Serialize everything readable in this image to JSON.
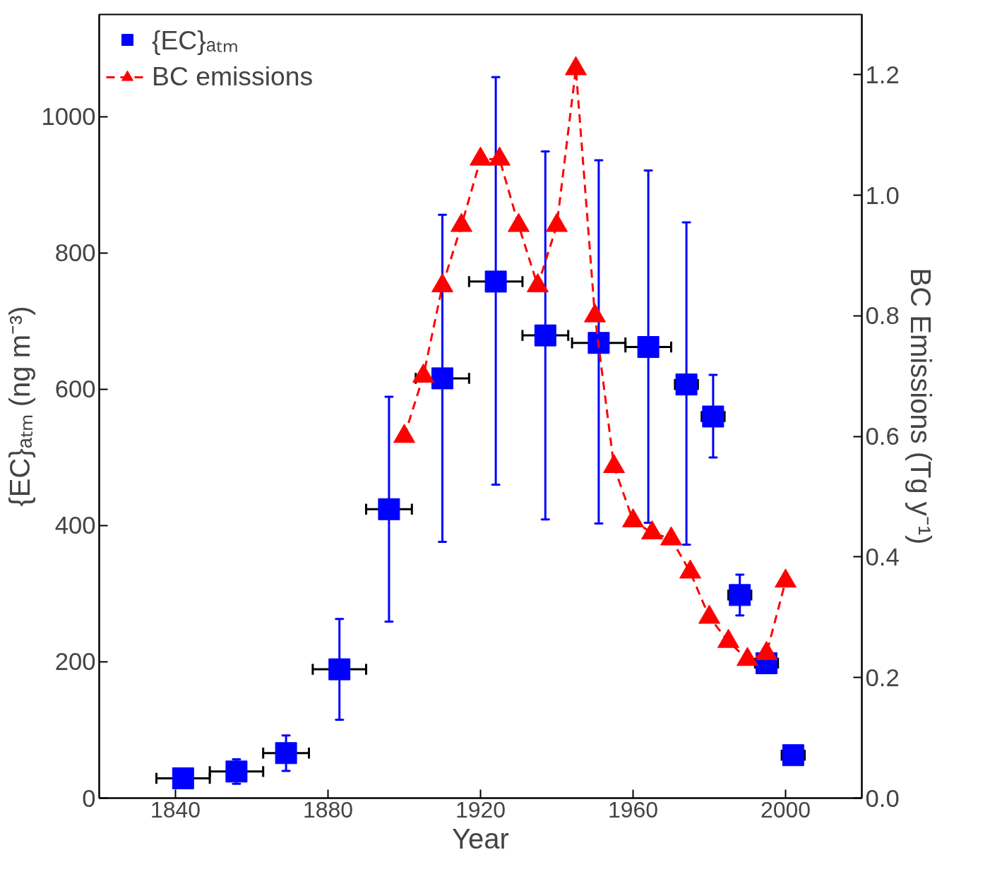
{
  "chart_data": {
    "type": "scatter",
    "xlabel": "Year",
    "ylabel": "{EC}ₐₜₘ (ng m⁻³)",
    "y2label": "BC Emissions (Tg y⁻¹)",
    "xlim": [
      1820,
      2020
    ],
    "xticks": [
      1840,
      1880,
      1920,
      1960,
      2000
    ],
    "ylim": [
      0,
      1150
    ],
    "yticks": [
      0,
      200,
      400,
      600,
      800,
      1000
    ],
    "y2lim": [
      0,
      1.3
    ],
    "y2ticks": [
      {
        "value": 0,
        "label": "0.0"
      },
      0.2,
      0.4,
      0.6,
      0.8,
      {
        "value": 1,
        "label": "1.0"
      },
      1.2
    ],
    "grid": false,
    "legend": "top left",
    "series": [
      {
        "name": "{EC}ₐₜₘ",
        "marker": "square",
        "color": "#0000ff",
        "x": [
          1842,
          1856,
          1869,
          1883,
          1896,
          1910,
          1924,
          1937,
          1951,
          1964,
          1974,
          1981,
          1988,
          1995,
          2002
        ],
        "values": [
          29,
          39,
          66,
          189,
          424,
          616,
          758,
          679,
          668,
          662,
          607,
          560,
          298,
          198,
          63
        ],
        "errors": [
          null,
          [
            21,
            57
          ],
          [
            40,
            92
          ],
          [
            115,
            263
          ],
          [
            259,
            589
          ],
          [
            376,
            856
          ],
          [
            460,
            1058
          ],
          [
            409,
            949
          ],
          [
            403,
            936
          ],
          [
            404,
            921
          ],
          [
            372,
            845
          ],
          [
            500,
            621
          ],
          [
            268,
            328
          ],
          null,
          null
        ],
        "xerrors": [
          7,
          7,
          6,
          7,
          6,
          7,
          7,
          6,
          7,
          6,
          3,
          3,
          3,
          3,
          3
        ]
      },
      {
        "name": "BC emissions",
        "type": "line",
        "axis": "y2",
        "marker": "triangle",
        "line_style": "dashed",
        "color": "#ff0000",
        "x": [
          1900,
          1905,
          1910,
          1915,
          1920,
          1925,
          1930,
          1935,
          1940,
          1945,
          1950,
          1955,
          1960,
          1965,
          1970,
          1975,
          1980,
          1985,
          1990,
          1995,
          2000
        ],
        "values": [
          0.6,
          0.7,
          0.85,
          0.95,
          1.06,
          1.06,
          0.95,
          0.85,
          0.95,
          1.21,
          0.8,
          0.55,
          0.46,
          0.44,
          0.43,
          0.375,
          0.3,
          0.26,
          0.23,
          0.24,
          0.36
        ]
      }
    ]
  }
}
